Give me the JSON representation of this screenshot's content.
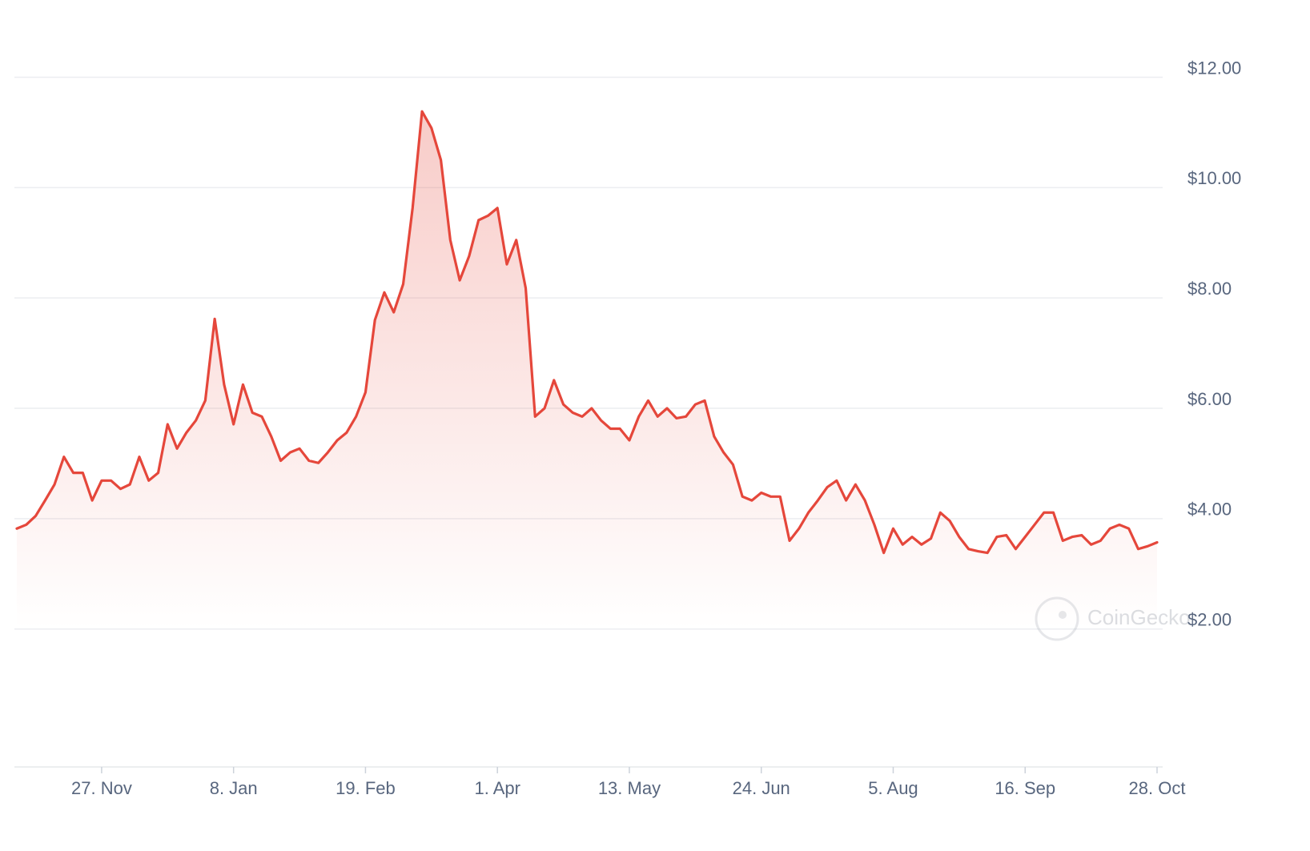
{
  "chart_data": {
    "type": "line",
    "watermark": "CoinGecko",
    "x": [
      "31. Oct",
      "3. Nov",
      "6. Nov",
      "9. Nov",
      "12. Nov",
      "15. Nov",
      "18. Nov",
      "21. Nov",
      "24. Nov",
      "27. Nov",
      "30. Nov",
      "3. Dec",
      "6. Dec",
      "9. Dec",
      "12. Dec",
      "15. Dec",
      "18. Dec",
      "21. Dec",
      "24. Dec",
      "27. Dec",
      "30. Dec",
      "2. Jan",
      "5. Jan",
      "8. Jan",
      "11. Jan",
      "14. Jan",
      "17. Jan",
      "20. Jan",
      "23. Jan",
      "26. Jan",
      "29. Jan",
      "1. Feb",
      "4. Feb",
      "7. Feb",
      "10. Feb",
      "13. Feb",
      "16. Feb",
      "19. Feb",
      "22. Feb",
      "25. Feb",
      "28. Feb",
      "2. Mar",
      "5. Mar",
      "8. Mar",
      "11. Mar",
      "14. Mar",
      "17. Mar",
      "20. Mar",
      "23. Mar",
      "26. Mar",
      "29. Mar",
      "1. Apr",
      "4. Apr",
      "7. Apr",
      "10. Apr",
      "13. Apr",
      "16. Apr",
      "19. Apr",
      "22. Apr",
      "25. Apr",
      "28. Apr",
      "1. May",
      "4. May",
      "7. May",
      "10. May",
      "13. May",
      "16. May",
      "19. May",
      "22. May",
      "25. May",
      "28. May",
      "31. May",
      "3. Jun",
      "6. Jun",
      "9. Jun",
      "12. Jun",
      "15. Jun",
      "18. Jun",
      "21. Jun",
      "24. Jun",
      "27. Jun",
      "30. Jun",
      "3. Jul",
      "6. Jul",
      "9. Jul",
      "12. Jul",
      "15. Jul",
      "18. Jul",
      "21. Jul",
      "24. Jul",
      "27. Jul",
      "30. Jul",
      "2. Aug",
      "5. Aug",
      "8. Aug",
      "11. Aug",
      "14. Aug",
      "17. Aug",
      "20. Aug",
      "23. Aug",
      "26. Aug",
      "29. Aug",
      "1. Sep",
      "4. Sep",
      "7. Sep",
      "10. Sep",
      "13. Sep",
      "16. Sep",
      "19. Sep",
      "22. Sep",
      "25. Sep",
      "28. Sep",
      "1. Oct",
      "4. Oct",
      "7. Oct",
      "10. Oct",
      "13. Oct",
      "16. Oct",
      "19. Oct",
      "22. Oct",
      "25. Oct",
      "28. Oct"
    ],
    "values": [
      3.82,
      3.89,
      4.05,
      4.33,
      4.62,
      5.12,
      4.83,
      4.83,
      4.33,
      4.69,
      4.69,
      4.54,
      4.62,
      5.12,
      4.69,
      4.83,
      5.71,
      5.27,
      5.56,
      5.78,
      6.14,
      7.62,
      6.43,
      5.71,
      6.43,
      5.92,
      5.85,
      5.49,
      5.05,
      5.2,
      5.27,
      5.05,
      5.01,
      5.2,
      5.42,
      5.56,
      5.85,
      6.29,
      7.6,
      8.1,
      7.74,
      8.25,
      9.63,
      11.38,
      11.08,
      10.5,
      9.05,
      8.32,
      8.76,
      9.41,
      9.49,
      9.63,
      8.61,
      9.05,
      8.18,
      5.85,
      6.0,
      6.51,
      6.07,
      5.92,
      5.85,
      6.0,
      5.78,
      5.63,
      5.63,
      5.42,
      5.85,
      6.14,
      5.85,
      6.0,
      5.82,
      5.85,
      6.07,
      6.14,
      5.49,
      5.2,
      4.98,
      4.4,
      4.33,
      4.47,
      4.4,
      4.4,
      3.6,
      3.82,
      4.11,
      4.33,
      4.57,
      4.69,
      4.33,
      4.62,
      4.33,
      3.89,
      3.38,
      3.82,
      3.53,
      3.67,
      3.53,
      3.64,
      4.11,
      3.96,
      3.67,
      3.45,
      3.41,
      3.38,
      3.67,
      3.7,
      3.45,
      3.67,
      3.89,
      4.11,
      4.11,
      3.6,
      3.67,
      3.7,
      3.53,
      3.6,
      3.82,
      3.89,
      3.82,
      3.45,
      3.5,
      3.57
    ],
    "color": "#e5473b",
    "xticks": [
      "27. Nov",
      "8. Jan",
      "19. Feb",
      "1. Apr",
      "13. May",
      "24. Jun",
      "5. Aug",
      "16. Sep",
      "28. Oct"
    ],
    "ylim": [
      -0.5,
      13.4
    ],
    "yticks": [
      {
        "value": 2,
        "label": "$2.00"
      },
      {
        "value": 4,
        "label": "$4.00"
      },
      {
        "value": 6,
        "label": "$6.00"
      },
      {
        "value": 8,
        "label": "$8.00"
      },
      {
        "value": 10,
        "label": "$10.00"
      },
      {
        "value": 12,
        "label": "$12.00"
      }
    ],
    "grid": true
  }
}
